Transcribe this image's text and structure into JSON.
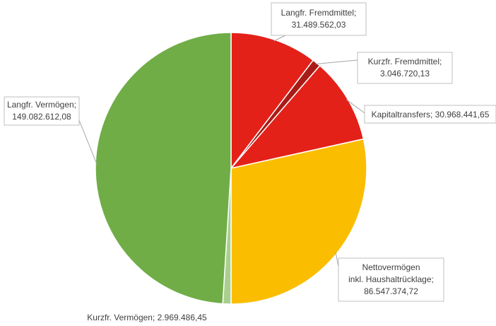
{
  "chart_data": {
    "type": "pie",
    "title": "",
    "slices": [
      {
        "label": "Langfr. Fremdmittel",
        "value_text": "31.489.562,03",
        "value": 31489562.03,
        "color": "#e32119"
      },
      {
        "label": "Kurzfr. Fremdmittel",
        "value_text": "3.046.720,13",
        "value": 3046720.13,
        "color": "#a91b16"
      },
      {
        "label": "Kapitaltransfers",
        "value_text": "30.968.441,65",
        "value": 30968441.65,
        "color": "#e32119"
      },
      {
        "label": "Nettovermögen inkl. Haushaltrücklage",
        "value_text": "86.547.374,72",
        "value": 86547374.72,
        "color": "#fbbd00"
      },
      {
        "label": "Kurzfr. Vermögen",
        "value_text": "2.969.486,45",
        "value": 2969486.45,
        "color": "#a9cf8e"
      },
      {
        "label": "Langfr. Vermögen",
        "value_text": "149.082.612,08",
        "value": 149082612.08,
        "color": "#70ad47"
      }
    ],
    "labels": [
      {
        "lines": [
          "Langfr. Fremdmittel;",
          "31.489.562,03"
        ]
      },
      {
        "lines": [
          "Kurzfr. Fremdmittel;",
          "3.046.720,13"
        ]
      },
      {
        "lines": [
          "Kapitaltransfers; 30.968.441,65"
        ]
      },
      {
        "lines": [
          "Nettovermögen",
          "inkl. Haushaltrücklage;",
          "86.547.374,72"
        ]
      },
      {
        "lines": [
          "Kurzfr. Vermögen; 2.969.486,45"
        ]
      },
      {
        "lines": [
          "Langfr. Vermögen;",
          "149.082.612,08"
        ]
      }
    ],
    "legend": "none"
  }
}
